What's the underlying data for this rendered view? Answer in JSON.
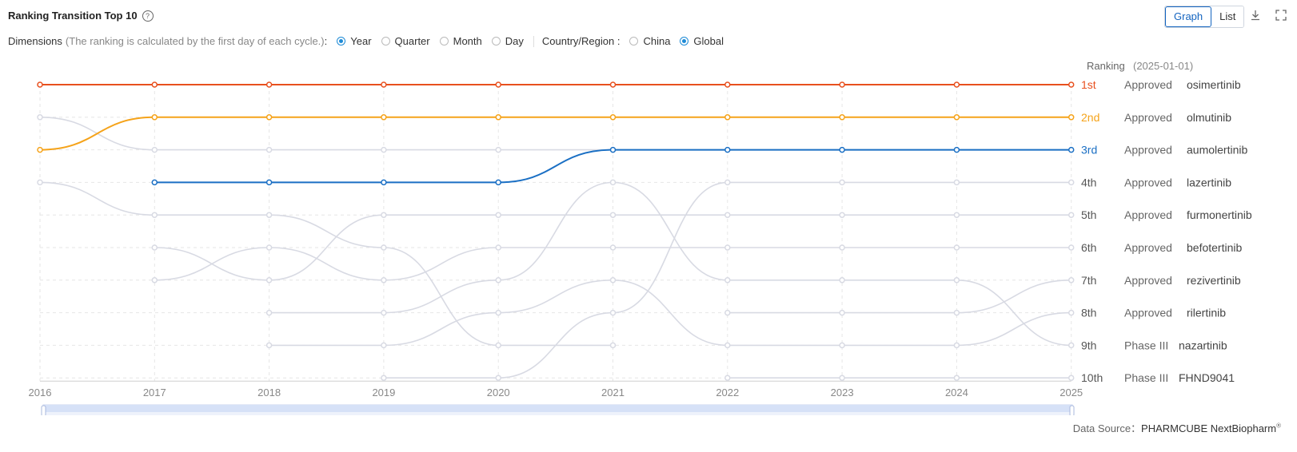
{
  "header": {
    "title": "Ranking Transition Top 10",
    "help_icon": "question-circle-icon",
    "view_toggle": [
      "Graph",
      "List"
    ],
    "view_selected": "Graph",
    "download_icon": "download-icon",
    "fullscreen_icon": "fullscreen-icon"
  },
  "filters": {
    "dimensions_label": "Dimensions",
    "dimensions_note": "(The ranking is calculated by the first day of each cycle.)",
    "colon": " :",
    "dimension_options": [
      "Year",
      "Quarter",
      "Month",
      "Day"
    ],
    "dimension_selected": "Year",
    "region_label": "Country/Region :",
    "region_options": [
      "China",
      "Global"
    ],
    "region_selected": "Global"
  },
  "chart_data": {
    "type": "line",
    "header_label": "Ranking",
    "header_date": "(2025-01-01)",
    "x": [
      "2016",
      "2017",
      "2018",
      "2019",
      "2020",
      "2021",
      "2022",
      "2023",
      "2024",
      "2025"
    ],
    "rank_labels": [
      "1st",
      "2nd",
      "3rd",
      "4th",
      "5th",
      "6th",
      "7th",
      "8th",
      "9th",
      "10th"
    ],
    "rank_colors": [
      "#e8501e",
      "#f5a31a",
      "#1a6fc4"
    ],
    "final": [
      {
        "rank": "1st",
        "status": "Approved",
        "drug": "osimertinib"
      },
      {
        "rank": "2nd",
        "status": "Approved",
        "drug": "olmutinib"
      },
      {
        "rank": "3rd",
        "status": "Approved",
        "drug": "aumolertinib"
      },
      {
        "rank": "4th",
        "status": "Approved",
        "drug": "lazertinib"
      },
      {
        "rank": "5th",
        "status": "Approved",
        "drug": "furmonertinib"
      },
      {
        "rank": "6th",
        "status": "Approved",
        "drug": "befotertinib"
      },
      {
        "rank": "7th",
        "status": "Approved",
        "drug": "rezivertinib"
      },
      {
        "rank": "8th",
        "status": "Approved",
        "drug": "rilertinib"
      },
      {
        "rank": "9th",
        "status": "Phase III",
        "drug": "nazartinib"
      },
      {
        "rank": "10th",
        "status": "Phase III",
        "drug": "FHND9041"
      }
    ],
    "series": [
      {
        "name": "osimertinib",
        "highlight": true,
        "color": "#e8501e",
        "values": [
          1,
          1,
          1,
          1,
          1,
          1,
          1,
          1,
          1,
          1
        ]
      },
      {
        "name": "olmutinib",
        "highlight": true,
        "color": "#f5a31a",
        "values": [
          3,
          2,
          2,
          2,
          2,
          2,
          2,
          2,
          2,
          2
        ]
      },
      {
        "name": "aumolertinib",
        "highlight": true,
        "color": "#1a6fc4",
        "values": [
          null,
          4,
          4,
          4,
          4,
          3,
          3,
          3,
          3,
          3
        ]
      },
      {
        "name": "gray-a",
        "highlight": false,
        "values": [
          2,
          3,
          3,
          3,
          3,
          3,
          null,
          null,
          null,
          null
        ]
      },
      {
        "name": "gray-b",
        "highlight": false,
        "values": [
          4,
          5,
          5,
          6,
          9,
          9,
          null,
          null,
          null,
          null
        ]
      },
      {
        "name": "gray-c",
        "highlight": false,
        "values": [
          null,
          6,
          7,
          5,
          5,
          5,
          5,
          5,
          5,
          5
        ]
      },
      {
        "name": "gray-d",
        "highlight": false,
        "values": [
          null,
          7,
          6,
          7,
          6,
          6,
          6,
          6,
          6,
          6
        ]
      },
      {
        "name": "gray-e",
        "highlight": false,
        "values": [
          null,
          null,
          8,
          8,
          7,
          4,
          7,
          7,
          7,
          9
        ]
      },
      {
        "name": "gray-f",
        "highlight": false,
        "values": [
          null,
          null,
          9,
          9,
          8,
          7,
          9,
          9,
          9,
          8
        ]
      },
      {
        "name": "gray-g",
        "highlight": false,
        "values": [
          null,
          null,
          null,
          10,
          10,
          8,
          4,
          4,
          4,
          4
        ]
      },
      {
        "name": "gray-h",
        "highlight": false,
        "values": [
          null,
          null,
          null,
          null,
          null,
          null,
          8,
          8,
          8,
          7
        ]
      },
      {
        "name": "gray-i",
        "highlight": false,
        "values": [
          null,
          null,
          null,
          null,
          null,
          null,
          10,
          10,
          10,
          10
        ]
      }
    ],
    "grid": true
  },
  "footer": {
    "source_label": "Data Source：",
    "source_value": "PHARMCUBE NextBiopharm",
    "registered": "®"
  }
}
